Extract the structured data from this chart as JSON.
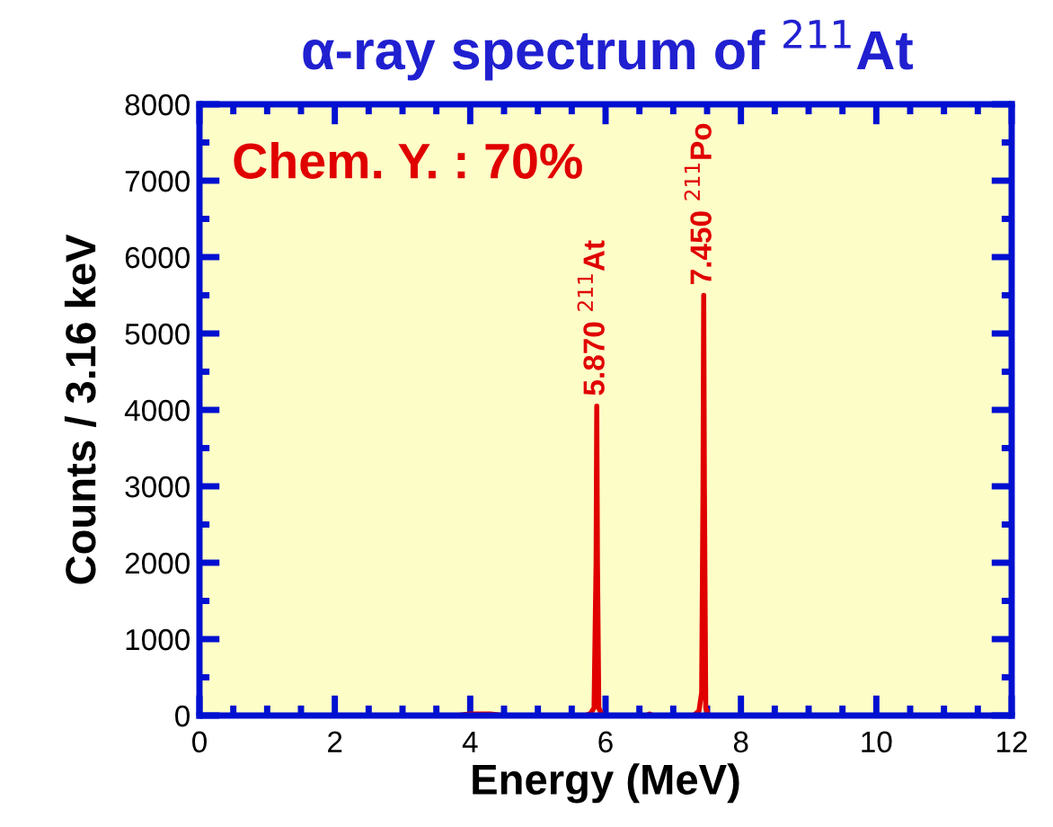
{
  "chart_data": {
    "type": "line",
    "title": "α-ray spectrum of $^{211}$At",
    "xlabel": "Energy (MeV)",
    "ylabel": "Counts / 3.16 keV",
    "x": [
      0,
      3.8,
      4.0,
      4.3,
      4.5,
      5.7,
      5.78,
      5.83,
      5.86,
      5.87,
      5.88,
      5.9,
      5.95,
      6.6,
      6.65,
      6.7,
      7.3,
      7.38,
      7.42,
      7.44,
      7.45,
      7.46,
      7.48,
      7.52,
      12
    ],
    "series": [
      {
        "color": "#e00000",
        "values": [
          0,
          0,
          20,
          20,
          0,
          0,
          30,
          100,
          2000,
          4050,
          2000,
          100,
          0,
          0,
          20,
          0,
          0,
          60,
          300,
          3000,
          5500,
          3000,
          100,
          0,
          0
        ]
      }
    ],
    "xlim": [
      0,
      12
    ],
    "ylim": [
      0,
      8000
    ],
    "xticks": [
      0,
      2,
      4,
      6,
      8,
      10,
      12
    ],
    "yticks": [
      0,
      1000,
      2000,
      3000,
      4000,
      5000,
      6000,
      7000,
      8000
    ],
    "grid": false,
    "legend": false,
    "marker": "none",
    "line_style": "solid",
    "annotations": [
      "Chem. Y. : 70%",
      {
        "text": "5.870 $^{211}$At",
        "x": 5.87,
        "y": 4050
      },
      {
        "text": "7.450 $^{211}$Po",
        "x": 7.45,
        "y": 5500
      }
    ]
  }
}
